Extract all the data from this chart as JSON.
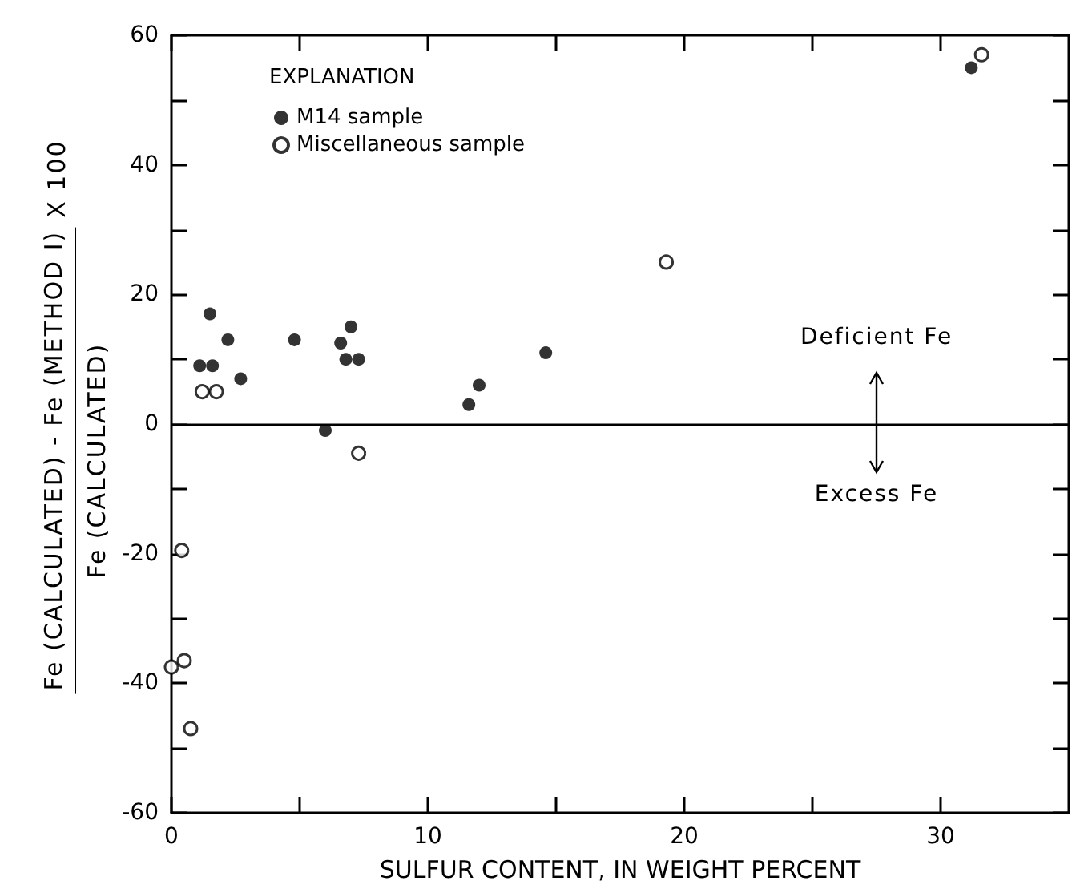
{
  "chart_data": {
    "type": "scatter",
    "xlabel": "SULFUR CONTENT, IN WEIGHT PERCENT",
    "ylabel": "Fe (CALCULATED) - Fe (METHOD I)\nFe (CALCULATED)\nX 100",
    "legend_title": "EXPLANATION",
    "legend": "top left",
    "grid": false,
    "xlim": [
      0,
      35
    ],
    "ylim": [
      -60,
      60
    ],
    "xticks": [
      0,
      {
        "value": 5,
        "label": null
      },
      10,
      {
        "value": 15,
        "label": null
      },
      20,
      {
        "value": 25,
        "label": null
      },
      30
    ],
    "yticks": [
      -60,
      {
        "value": -50,
        "label": null
      },
      -40,
      {
        "value": -30,
        "label": null
      },
      -20,
      {
        "value": -10,
        "label": null
      },
      0,
      {
        "value": 10,
        "label": null
      },
      20,
      {
        "value": 30,
        "label": null
      },
      40,
      {
        "value": 50,
        "label": null
      },
      60
    ],
    "ref_lines": [
      {
        "axis": "y",
        "value": 0,
        "color": "#000000"
      }
    ],
    "annotations": [
      "Deficient Fe",
      "Excess Fe"
    ],
    "series": [
      {
        "name": "M14 sample",
        "color": "#000000",
        "marker": "circle",
        "x": [
          1.5,
          1.1,
          1.6,
          2.2,
          2.7,
          4.8,
          6.0,
          6.6,
          7.0,
          6.8,
          7.3,
          11.6,
          12.0,
          14.6,
          31.2
        ],
        "values": [
          17,
          9,
          9,
          13,
          7,
          13,
          -1,
          12.5,
          15,
          10,
          10,
          3,
          6,
          11,
          55
        ]
      },
      {
        "name": "Miscellaneous sample",
        "color": "#000000",
        "marker": "open circle",
        "x": [
          1.2,
          1.75,
          7.3,
          31.6,
          19.3,
          0.4,
          0.0,
          0.5,
          0.75
        ],
        "values": [
          5,
          5,
          -4.5,
          57,
          25,
          -19.5,
          -37.5,
          -36.5,
          -47
        ]
      }
    ]
  }
}
